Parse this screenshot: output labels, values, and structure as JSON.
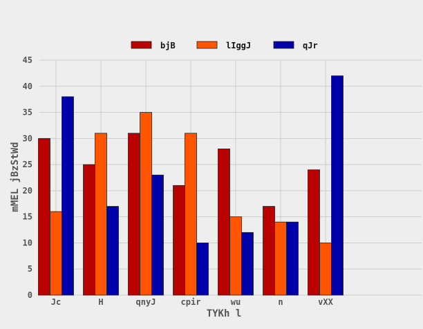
{
  "chart_data": {
    "type": "bar",
    "title": "",
    "xlabel": "TYKh l",
    "ylabel": "mMEL jBzStWd",
    "categories": [
      "Jc",
      "H",
      "qnyJ",
      "cpir",
      "wu",
      "n",
      "vXX"
    ],
    "series": [
      {
        "name": "bjB",
        "color": "#bb0000",
        "values": [
          30,
          25,
          31,
          21,
          28,
          17,
          24
        ]
      },
      {
        "name": "lIggJ",
        "color": "#ff5500",
        "values": [
          16,
          31,
          35,
          31,
          15,
          14,
          10
        ]
      },
      {
        "name": "qJr",
        "color": "#0000aa",
        "values": [
          38,
          17,
          23,
          10,
          12,
          14,
          42
        ]
      }
    ],
    "ylim": [
      0,
      45
    ],
    "yticks": [
      0,
      5,
      10,
      15,
      20,
      25,
      30,
      35,
      40,
      45
    ],
    "grid": true,
    "legend_position": "top-center"
  }
}
